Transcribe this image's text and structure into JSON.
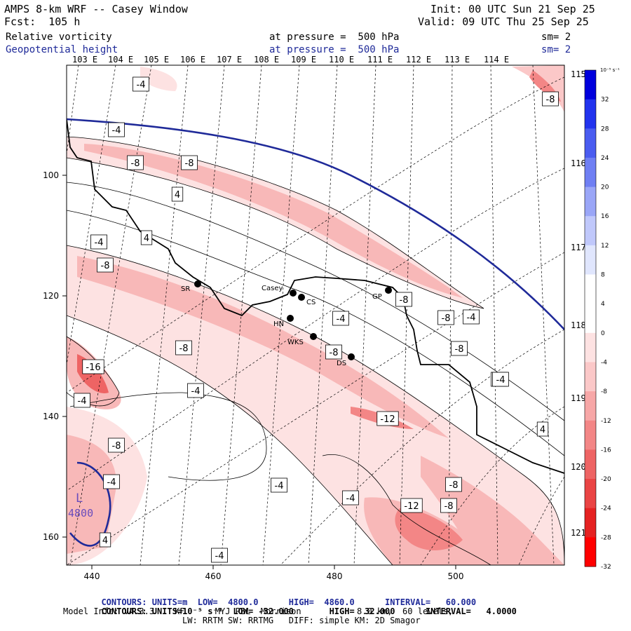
{
  "header": {
    "title": "AMPS 8-km WRF -- Casey Window",
    "fcst": "Fcst:  105 h",
    "init": "Init: 00 UTC Sun 21 Sep 25",
    "valid": "Valid: 09 UTC Thu 25 Sep 25",
    "field1": {
      "name": "Relative vorticity",
      "pressure": "at pressure =  500 hPa",
      "sm": "sm= 2"
    },
    "field2": {
      "name": "Geopotential height",
      "pressure": "at pressure =  500 hPa",
      "sm": "sm= 2"
    }
  },
  "map": {
    "top_lon_labels": [
      "103 E",
      "104 E",
      "105 E",
      "106 E",
      "107 E",
      "108 E",
      "109 E",
      "110 E",
      "111 E",
      "112 E",
      "113 E",
      "114 E"
    ],
    "right_lon_labels": [
      "115 E",
      "116 E",
      "117 E",
      "118 E",
      "119 E",
      "120 E",
      "121 E"
    ],
    "x_ticks": [
      "440",
      "460",
      "480",
      "500"
    ],
    "y_ticks": [
      "100",
      "120",
      "140",
      "160"
    ],
    "stations": [
      {
        "id": "SR",
        "label": "SR"
      },
      {
        "id": "casey",
        "label": "Casey"
      },
      {
        "id": "cs",
        "label": "CS"
      },
      {
        "id": "hn",
        "label": "HN"
      },
      {
        "id": "wks",
        "label": "WKS"
      },
      {
        "id": "ds",
        "label": "DS"
      },
      {
        "id": "gp",
        "label": "GP"
      }
    ],
    "low_marker": {
      "letter": "L",
      "value": "4800"
    },
    "vorticity_labels": [
      "-4",
      "-4",
      "-8",
      "-8",
      "4",
      "4",
      "-4",
      "-8",
      "-8",
      "-16",
      "-4",
      "-4",
      "-8",
      "-12",
      "-4",
      "-8",
      "-4",
      "-4",
      "-12",
      "-8",
      "-8",
      "-8",
      "-8",
      "-4",
      "-4",
      "-4",
      "-8",
      "-4",
      "4",
      "-4",
      "4",
      "-8"
    ]
  },
  "colorbar": {
    "unit": "10⁻⁵ s⁻¹",
    "labels": [
      "32",
      "28",
      "24",
      "20",
      "16",
      "12",
      "8",
      "4",
      "0",
      "-4",
      "-8",
      "-12",
      "-16",
      "-20",
      "-24",
      "-28",
      "-32"
    ],
    "colors": [
      "#0000dd",
      "#2233ee",
      "#4a5cf0",
      "#6f7ff3",
      "#9aa6f7",
      "#c0c8fb",
      "#e0e6fd",
      "#ffffff",
      "#ffffff",
      "#fde2e2",
      "#fbc8c8",
      "#f7a7a7",
      "#f38686",
      "#ee6464",
      "#ea4444",
      "#e52222",
      "#ff0000"
    ]
  },
  "footer": {
    "contours1_label": "CONTOURS:",
    "contours1_rest": "UNITS=m  LOW=  4800.0      HIGH=  4860.0      INTERVAL=   60.000",
    "contours2_label": "CONTOURS:",
    "contours2_rest": "UNITS=10⁻⁵ s⁻¹  LOW= -32.000       HIGH=  32.000      INTERVAL=   4.0000",
    "model_info": "Model Info: V4.3.3    KF      MYJ PBL  Morrison           8.0 km,  60 levels,",
    "physics": "LW: RRTM SW: RRTMG   DIFF: simple KM: 2D Smagor"
  }
}
